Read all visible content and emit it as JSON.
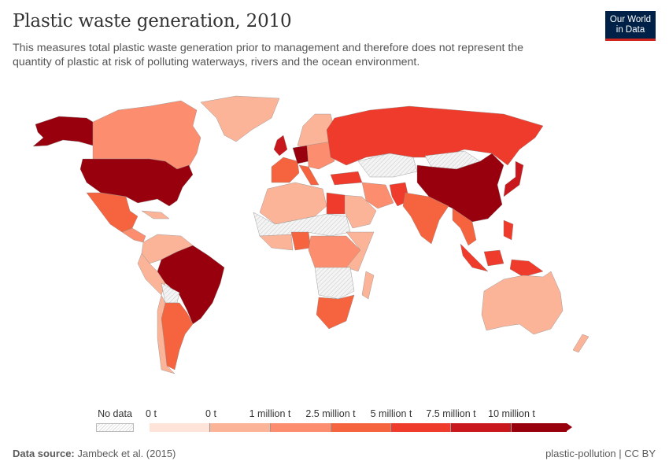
{
  "header": {
    "title": "Plastic waste generation, 2010",
    "subtitle": "This measures total plastic waste generation prior to management and therefore does not represent the quantity of plastic at risk of polluting waterways, rivers and the ocean environment.",
    "logo_line1": "Our World",
    "logo_line2": "in Data"
  },
  "legend": {
    "no_data_label": "No data",
    "labels": [
      "0 t",
      "0 t",
      "1 million t",
      "2.5 million t",
      "5 million t",
      "7.5 million t",
      "10 million t"
    ],
    "colors": [
      "#fee4d8",
      "#fcb499",
      "#fc8e6f",
      "#f6643f",
      "#ee3b2b",
      "#c9181d",
      "#99000d"
    ],
    "no_data_color": "hatched"
  },
  "footer": {
    "source_label": "Data source:",
    "source_value": "Jambeck et al. (2015)",
    "right": "plastic-pollution | CC BY"
  }
}
